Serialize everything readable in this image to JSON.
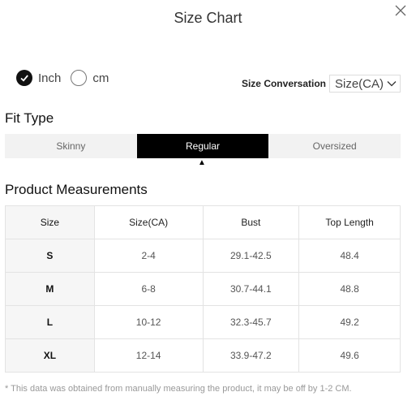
{
  "header": {
    "title": "Size Chart"
  },
  "units": {
    "inch_label": "Inch",
    "cm_label": "cm",
    "selected": "Inch"
  },
  "conversion": {
    "label": "Size Conversation",
    "selected": "Size(CA)"
  },
  "fit": {
    "title": "Fit Type",
    "options": [
      "Skinny",
      "Regular",
      "Oversized"
    ],
    "selected": "Regular"
  },
  "measurements": {
    "title": "Product Measurements",
    "columns": [
      "Size",
      "Size(CA)",
      "Bust",
      "Top Length"
    ],
    "rows": [
      [
        "S",
        "2-4",
        "29.1-42.5",
        "48.4"
      ],
      [
        "M",
        "6-8",
        "30.7-44.1",
        "48.8"
      ],
      [
        "L",
        "10-12",
        "32.3-45.7",
        "49.2"
      ],
      [
        "XL",
        "12-14",
        "33.9-47.2",
        "49.6"
      ]
    ]
  },
  "note": "* This data was obtained from manually measuring the product, it may be off by 1-2 CM."
}
